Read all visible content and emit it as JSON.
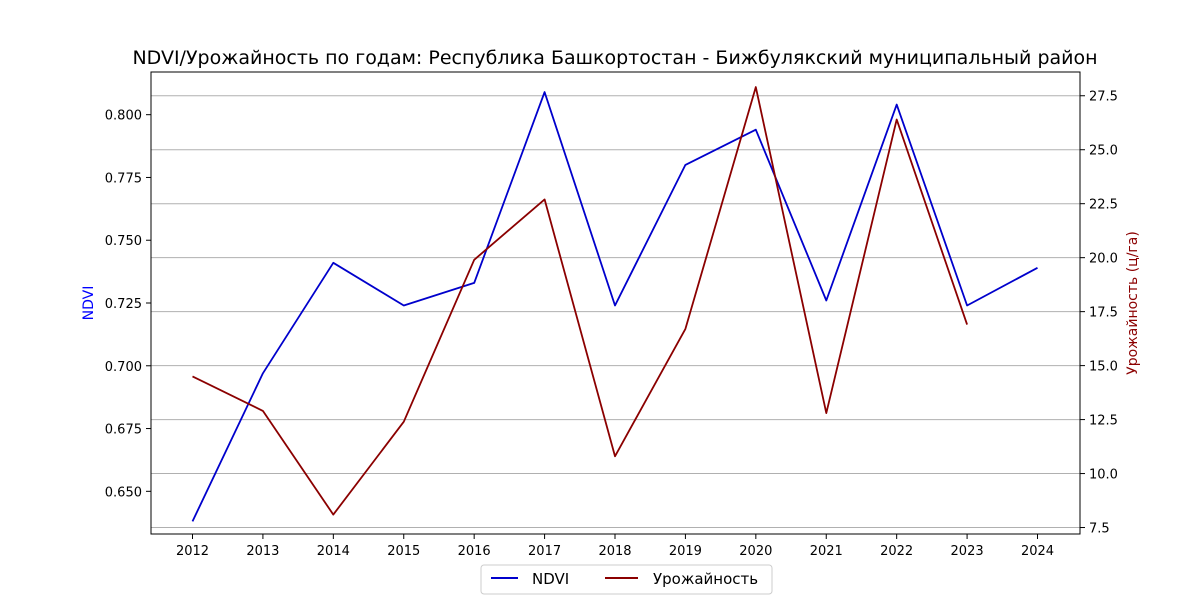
{
  "chart_data": {
    "type": "line",
    "title": "NDVI/Урожайность по годам: Республика Башкортостан - Бижбулякский муниципальный район",
    "x": [
      "2012",
      "2013",
      "2014",
      "2015",
      "2016",
      "2017",
      "2018",
      "2019",
      "2020",
      "2021",
      "2022",
      "2023",
      "2024"
    ],
    "grid": "horizontal (right axis)",
    "legend_position": "bottom-center",
    "left_axis": {
      "label": "NDVI",
      "color": "#0000ff",
      "ylim": [
        0.633,
        0.817
      ],
      "ticks": [
        "0.650",
        "0.675",
        "0.700",
        "0.725",
        "0.750",
        "0.775",
        "0.800"
      ]
    },
    "right_axis": {
      "label": "Урожайность (ц/га)",
      "color": "#8b0000",
      "ylim": [
        7.2,
        28.6
      ],
      "ticks": [
        "7.5",
        "10.0",
        "12.5",
        "15.0",
        "17.5",
        "20.0",
        "22.5",
        "25.0",
        "27.5"
      ]
    },
    "series": [
      {
        "name": "NDVI",
        "axis": "left",
        "color": "#0000cc",
        "values": [
          0.638,
          0.697,
          0.741,
          0.724,
          0.733,
          0.809,
          0.724,
          0.78,
          0.794,
          0.726,
          0.804,
          0.724,
          0.739
        ]
      },
      {
        "name": "Урожайность",
        "axis": "right",
        "color": "#8b0000",
        "values": [
          14.5,
          12.9,
          8.1,
          12.4,
          19.9,
          22.7,
          10.8,
          16.7,
          27.9,
          12.8,
          26.4,
          16.9,
          null
        ]
      }
    ]
  }
}
